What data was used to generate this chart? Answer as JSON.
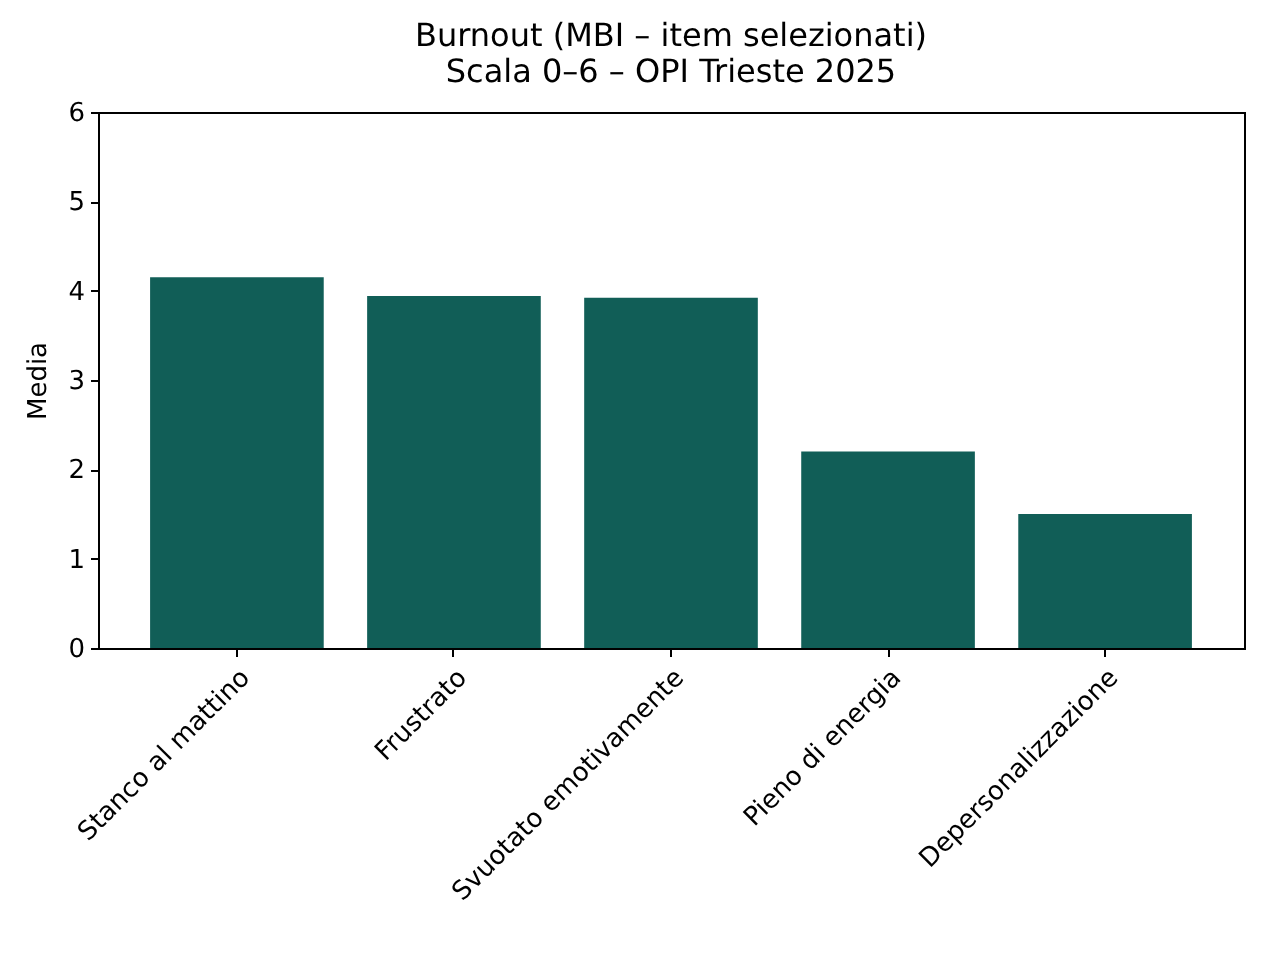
{
  "chart_data": {
    "type": "bar",
    "title": "Burnout (MBI – item selezionati)",
    "subtitle": "Scala 0–6 – OPI Trieste 2025",
    "ylabel": "Media",
    "categories": [
      "Stanco al mattino",
      "Frustrato",
      "Svuotato emotivamente",
      "Pieno di energia",
      "Depersonalizzazione"
    ],
    "values": [
      4.15,
      3.94,
      3.92,
      2.2,
      1.5
    ],
    "color": "#115e57",
    "ylim": [
      0,
      6
    ],
    "yticks": [
      0,
      1,
      2,
      3,
      4,
      5,
      6
    ]
  }
}
